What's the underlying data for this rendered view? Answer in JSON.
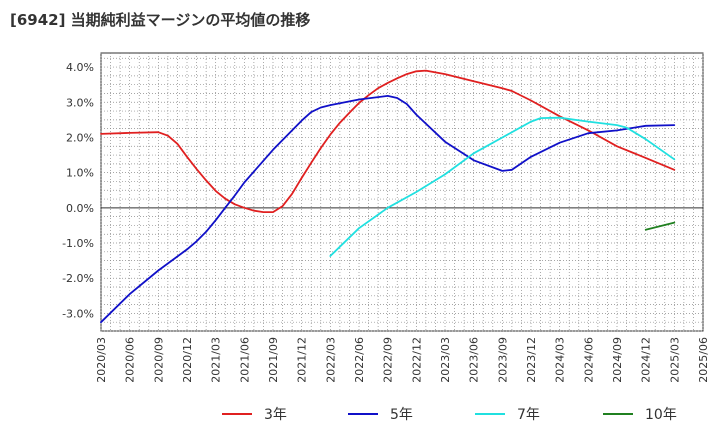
{
  "page": {
    "title": "[6942]  当期純利益マージンの平均値の推移"
  },
  "chart_data": {
    "type": "line",
    "title": "[6942]  当期純利益マージンの平均値の推移",
    "xlabel": "",
    "ylabel": "",
    "ylim": [
      -3.5,
      4.4
    ],
    "yticks": [
      4.0,
      3.0,
      2.0,
      1.0,
      0.0,
      -1.0,
      -2.0,
      -3.0
    ],
    "ytick_labels": [
      "4.0%",
      "3.0%",
      "2.0%",
      "1.0%",
      "0.0%",
      "-1.0%",
      "-2.0%",
      "-3.0%"
    ],
    "x_ticks": [
      "2020/03",
      "2020/06",
      "2020/09",
      "2020/12",
      "2021/03",
      "2021/06",
      "2021/09",
      "2021/12",
      "2022/03",
      "2022/06",
      "2022/09",
      "2022/12",
      "2023/03",
      "2023/06",
      "2023/09",
      "2023/12",
      "2024/03",
      "2024/06",
      "2024/09",
      "2024/12",
      "2025/03",
      "2025/06"
    ],
    "grid": true,
    "legend_position": "bottom",
    "series": [
      {
        "name": "3年",
        "color": "#e02020",
        "x": [
          "2020/03",
          "2020/06",
          "2020/09",
          "2020/10",
          "2020/11",
          "2020/12",
          "2021/01",
          "2021/02",
          "2021/03",
          "2021/04",
          "2021/05",
          "2021/06",
          "2021/07",
          "2021/08",
          "2021/09",
          "2021/10",
          "2021/11",
          "2021/12",
          "2022/01",
          "2022/02",
          "2022/03",
          "2022/04",
          "2022/05",
          "2022/06",
          "2022/07",
          "2022/08",
          "2022/09",
          "2022/10",
          "2022/11",
          "2022/12",
          "2023/01",
          "2023/03",
          "2023/06",
          "2023/09",
          "2023/10",
          "2023/12",
          "2024/03",
          "2024/06",
          "2024/09",
          "2024/12",
          "2025/03"
        ],
        "values": [
          2.1,
          2.13,
          2.15,
          2.05,
          1.82,
          1.45,
          1.1,
          0.78,
          0.48,
          0.26,
          0.1,
          0.0,
          -0.08,
          -0.12,
          -0.12,
          0.05,
          0.4,
          0.85,
          1.28,
          1.7,
          2.08,
          2.42,
          2.7,
          2.98,
          3.2,
          3.4,
          3.55,
          3.68,
          3.8,
          3.88,
          3.9,
          3.8,
          3.6,
          3.4,
          3.32,
          3.05,
          2.6,
          2.2,
          1.75,
          1.42,
          1.08
        ]
      },
      {
        "name": "5年",
        "color": "#1010c8",
        "x": [
          "2020/03",
          "2020/06",
          "2020/09",
          "2020/12",
          "2021/01",
          "2021/02",
          "2021/03",
          "2021/04",
          "2021/05",
          "2021/06",
          "2021/09",
          "2021/12",
          "2022/01",
          "2022/02",
          "2022/03",
          "2022/06",
          "2022/09",
          "2022/10",
          "2022/11",
          "2022/12",
          "2023/03",
          "2023/06",
          "2023/09",
          "2023/10",
          "2023/12",
          "2024/03",
          "2024/06",
          "2024/09",
          "2024/12",
          "2025/03"
        ],
        "values": [
          -3.25,
          -2.45,
          -1.78,
          -1.18,
          -0.95,
          -0.68,
          -0.35,
          0.0,
          0.35,
          0.72,
          1.65,
          2.48,
          2.72,
          2.85,
          2.92,
          3.08,
          3.18,
          3.12,
          2.95,
          2.65,
          1.88,
          1.35,
          1.05,
          1.08,
          1.45,
          1.85,
          2.12,
          2.2,
          2.33,
          2.35
        ]
      },
      {
        "name": "7年",
        "color": "#20e0e0",
        "x": [
          "2022/03",
          "2022/06",
          "2022/09",
          "2022/12",
          "2023/03",
          "2023/06",
          "2023/09",
          "2023/12",
          "2024/01",
          "2024/03",
          "2024/06",
          "2024/09",
          "2024/10",
          "2024/12",
          "2025/03"
        ],
        "values": [
          -1.37,
          -0.58,
          0.0,
          0.45,
          0.95,
          1.55,
          2.0,
          2.45,
          2.55,
          2.56,
          2.45,
          2.35,
          2.28,
          1.95,
          1.38
        ]
      },
      {
        "name": "10年",
        "color": "#208020",
        "x": [
          "2024/12",
          "2025/03"
        ],
        "values": [
          -0.62,
          -0.42
        ]
      }
    ]
  }
}
